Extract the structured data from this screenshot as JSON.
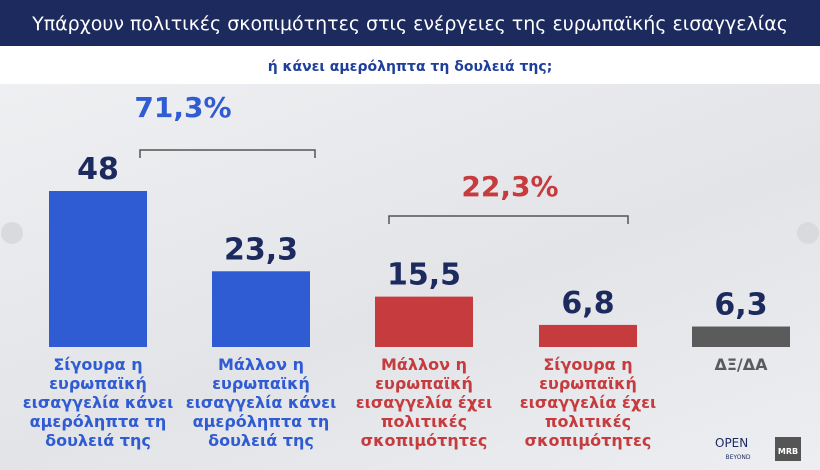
{
  "chart_data": {
    "type": "bar",
    "title": "Υπάρχουν πολιτικές σκοπιμότητες στις ενέργειες της ευρωπαϊκής εισαγγελίας",
    "subtitle": "ή κάνει αμερόληπτα τη δουλειά της;",
    "categories": [
      "Σίγουρα η ευρωπαϊκή εισαγγελία κάνει αμερόληπτα τη δουλειά της",
      "Μάλλον η ευρωπαϊκή εισαγγελία κάνει αμερόληπτα τη δουλειά της",
      "Μάλλον η ευρωπαϊκή εισαγγελία έχει πολιτικές σκοπιμότητες",
      "Σίγουρα η ευρωπαϊκή εισαγγελία έχει πολιτικές σκοπιμότητες",
      "ΔΞ/ΔΑ"
    ],
    "values": [
      48,
      23.3,
      15.5,
      6.8,
      6.3
    ],
    "value_labels": [
      "48",
      "23,3",
      "15,5",
      "6,8",
      "6,3"
    ],
    "colors": [
      "#2f5bd3",
      "#2f5bd3",
      "#c63b3d",
      "#c63b3d",
      "#5b5b5b"
    ],
    "annotations": [
      {
        "text": "71,3%",
        "color": "#2f5bd3"
      },
      {
        "text": "22,3%",
        "color": "#c63b3d"
      }
    ],
    "branding": [
      "OPEN",
      "BEYOND",
      "MRB"
    ]
  }
}
